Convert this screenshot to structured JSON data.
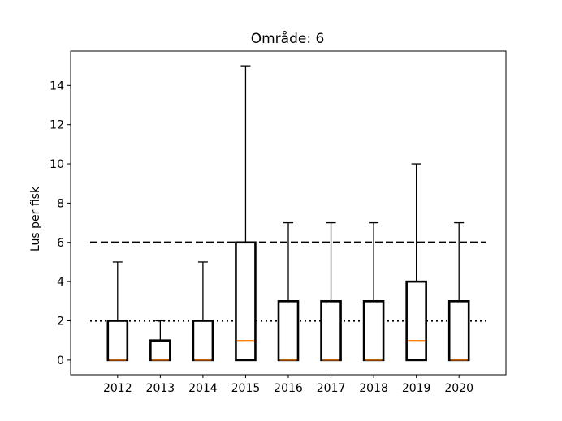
{
  "chart_data": {
    "type": "box",
    "title": "Område: 6",
    "xlabel": "",
    "ylabel": "Lus per fisk",
    "ylim": [
      -0.75,
      15.75
    ],
    "yticks": [
      0,
      2,
      4,
      6,
      8,
      10,
      12,
      14
    ],
    "categories": [
      "2012",
      "2013",
      "2014",
      "2015",
      "2016",
      "2017",
      "2018",
      "2019",
      "2020"
    ],
    "boxes": [
      {
        "label": "2012",
        "whislo": 0,
        "q1": 0,
        "median": 0,
        "q3": 2,
        "whishi": 5
      },
      {
        "label": "2013",
        "whislo": 0,
        "q1": 0,
        "median": 0,
        "q3": 1,
        "whishi": 2
      },
      {
        "label": "2014",
        "whislo": 0,
        "q1": 0,
        "median": 0,
        "q3": 2,
        "whishi": 5
      },
      {
        "label": "2015",
        "whislo": 0,
        "q1": 0,
        "median": 1,
        "q3": 6,
        "whishi": 15
      },
      {
        "label": "2016",
        "whislo": 0,
        "q1": 0,
        "median": 0,
        "q3": 3,
        "whishi": 7
      },
      {
        "label": "2017",
        "whislo": 0,
        "q1": 0,
        "median": 0,
        "q3": 3,
        "whishi": 7
      },
      {
        "label": "2018",
        "whislo": 0,
        "q1": 0,
        "median": 0,
        "q3": 3,
        "whishi": 7
      },
      {
        "label": "2019",
        "whislo": 0,
        "q1": 0,
        "median": 1,
        "q3": 4,
        "whishi": 10
      },
      {
        "label": "2020",
        "whislo": 0,
        "q1": 0,
        "median": 0,
        "q3": 3,
        "whishi": 7
      }
    ],
    "reference_lines": [
      {
        "value": 6,
        "style": "dashed"
      },
      {
        "value": 2,
        "style": "dotted"
      }
    ],
    "grid": false,
    "colors": {
      "box": "#000000",
      "median": "#ff7f0e",
      "whisker": "#000000"
    }
  }
}
